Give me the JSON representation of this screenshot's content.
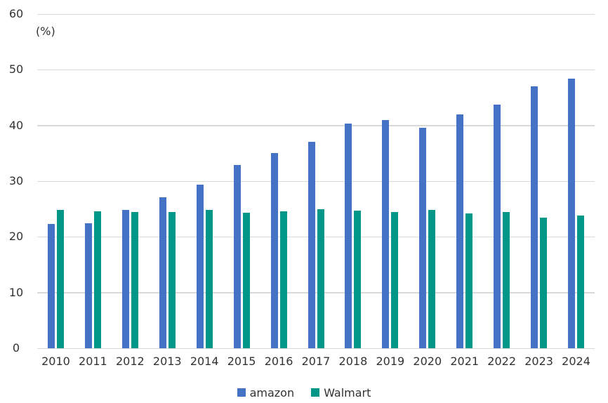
{
  "chart_data": {
    "type": "bar",
    "title": "",
    "unit_label": "(%)",
    "xlabel": "",
    "ylabel": "(%)",
    "ylim": [
      0,
      60
    ],
    "yticks": [
      0,
      10,
      20,
      30,
      40,
      50,
      60
    ],
    "grid": true,
    "legend_position": "bottom",
    "categories": [
      "2010",
      "2011",
      "2012",
      "2013",
      "2014",
      "2015",
      "2016",
      "2017",
      "2018",
      "2019",
      "2020",
      "2021",
      "2022",
      "2023",
      "2024"
    ],
    "series": [
      {
        "name": "amazon",
        "color": "#4472C4",
        "values": [
          22.3,
          22.4,
          24.8,
          27.1,
          29.4,
          32.9,
          35.1,
          37.1,
          40.3,
          41.0,
          39.6,
          42.0,
          43.8,
          47.0,
          48.4
        ]
      },
      {
        "name": "Walmart",
        "color": "#009688",
        "values": [
          24.8,
          24.6,
          24.4,
          24.4,
          24.8,
          24.3,
          24.6,
          25.0,
          24.7,
          24.5,
          24.8,
          24.2,
          24.4,
          23.4,
          23.8
        ]
      }
    ],
    "colors": {
      "gridline": "#d9d9d9",
      "axis_text": "#333333",
      "background": "#ffffff"
    }
  }
}
